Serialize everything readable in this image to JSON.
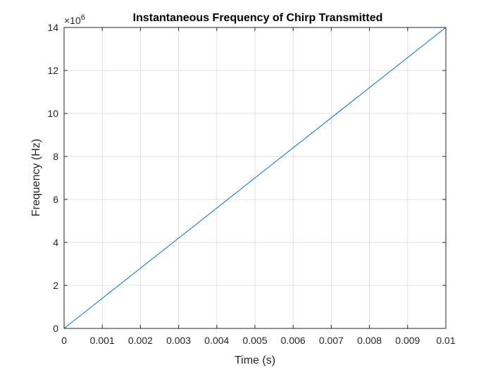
{
  "chart_data": {
    "type": "line",
    "title": "Instantaneous Frequency of Chirp Transmitted",
    "xlabel": "Time (s)",
    "ylabel": "Frequency (Hz)",
    "xlim": [
      0,
      0.01
    ],
    "ylim": [
      0,
      14
    ],
    "y_exponent_base": "×10",
    "y_exponent_power": "6",
    "grid": true,
    "x_ticks": [
      {
        "value": 0,
        "label": "0"
      },
      {
        "value": 0.001,
        "label": "0.001"
      },
      {
        "value": 0.002,
        "label": "0.002"
      },
      {
        "value": 0.003,
        "label": "0.003"
      },
      {
        "value": 0.004,
        "label": "0.004"
      },
      {
        "value": 0.005,
        "label": "0.005"
      },
      {
        "value": 0.006,
        "label": "0.006"
      },
      {
        "value": 0.007,
        "label": "0.007"
      },
      {
        "value": 0.008,
        "label": "0.008"
      },
      {
        "value": 0.009,
        "label": "0.009"
      },
      {
        "value": 0.01,
        "label": "0.01"
      }
    ],
    "y_ticks": [
      {
        "value": 0,
        "label": "0"
      },
      {
        "value": 2,
        "label": "2"
      },
      {
        "value": 4,
        "label": "4"
      },
      {
        "value": 6,
        "label": "6"
      },
      {
        "value": 8,
        "label": "8"
      },
      {
        "value": 10,
        "label": "10"
      },
      {
        "value": 12,
        "label": "12"
      },
      {
        "value": 14,
        "label": "14"
      }
    ],
    "series": [
      {
        "color": "#0072bd",
        "x": [
          0,
          0.01,
          0.01
        ],
        "y": [
          0,
          14,
          0
        ]
      }
    ]
  }
}
